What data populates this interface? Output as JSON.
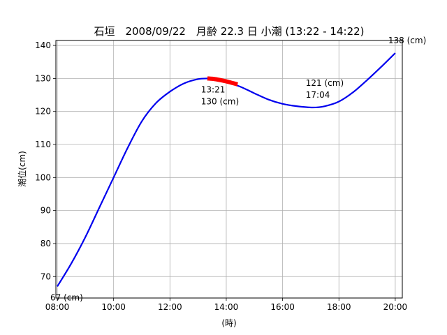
{
  "chart_data": {
    "type": "line",
    "title": "石垣　2008/09/22　月齢  22.3 日  小潮 (13:22 - 14:22)",
    "xlabel": "(時)",
    "ylabel": "潮位(cm)",
    "xlim": [
      7.95,
      20.25
    ],
    "ylim": [
      63.5,
      141.5
    ],
    "grid": true,
    "x_ticks": [
      {
        "value": 8,
        "label": "08:00"
      },
      {
        "value": 10,
        "label": "10:00"
      },
      {
        "value": 12,
        "label": "12:00"
      },
      {
        "value": 14,
        "label": "14:00"
      },
      {
        "value": 16,
        "label": "16:00"
      },
      {
        "value": 18,
        "label": "18:00"
      },
      {
        "value": 20,
        "label": "20:00"
      }
    ],
    "y_ticks": [
      {
        "value": 70,
        "label": "70"
      },
      {
        "value": 80,
        "label": "80"
      },
      {
        "value": 90,
        "label": "90"
      },
      {
        "value": 100,
        "label": "100"
      },
      {
        "value": 110,
        "label": "110"
      },
      {
        "value": 120,
        "label": "120"
      },
      {
        "value": 130,
        "label": "130"
      },
      {
        "value": 140,
        "label": "140"
      }
    ],
    "series": [
      {
        "color": "#0000ee",
        "x": [
          8.0,
          8.5,
          9.0,
          9.5,
          10.0,
          10.5,
          11.0,
          11.5,
          12.0,
          12.5,
          13.0,
          13.35,
          13.5,
          14.0,
          14.5,
          15.0,
          15.5,
          16.0,
          16.5,
          17.07,
          17.5,
          18.0,
          18.5,
          19.0,
          19.5,
          20.0
        ],
        "y": [
          67.0,
          74.0,
          82.0,
          91.0,
          100.0,
          109.0,
          117.0,
          122.5,
          126.0,
          128.5,
          129.8,
          130.0,
          129.9,
          129.0,
          127.5,
          125.5,
          123.6,
          122.3,
          121.6,
          121.2,
          121.6,
          123.0,
          125.8,
          129.5,
          133.5,
          137.7
        ]
      },
      {
        "color": "#ff0000",
        "x": [
          13.33,
          13.6,
          13.9,
          14.1,
          14.4
        ],
        "y": [
          130.0,
          129.8,
          129.3,
          128.9,
          128.2
        ]
      }
    ],
    "annotations": [
      {
        "x": 8.0,
        "y": 67.0,
        "lines": [
          "67 (cm)"
        ],
        "anchor": "below"
      },
      {
        "x": 13.35,
        "y": 130.0,
        "lines": [
          "13:21",
          "130 (cm)"
        ],
        "anchor": "below"
      },
      {
        "x": 17.07,
        "y": 121.2,
        "lines": [
          "121 (cm)",
          "17:04"
        ],
        "anchor": "above"
      },
      {
        "x": 20.0,
        "y": 137.7,
        "lines": [
          "138 (cm)"
        ],
        "anchor": "above"
      }
    ]
  }
}
